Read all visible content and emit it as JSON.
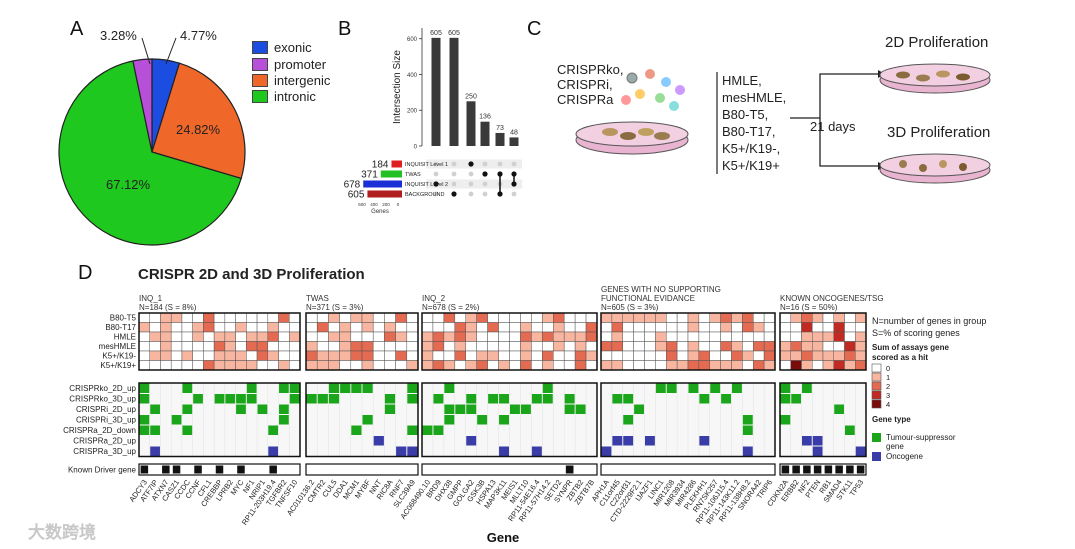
{
  "panels": {
    "a": "A",
    "b": "B",
    "c": "C",
    "d": "D"
  },
  "pie": {
    "slices": [
      {
        "label": "exonic",
        "value": 4.77,
        "display": "4.77%",
        "color": "#1b4de0"
      },
      {
        "label": "intergenic",
        "value": 24.82,
        "display": "24.82%",
        "color": "#f0672a"
      },
      {
        "label": "intronic",
        "value": 67.12,
        "display": "67.12%",
        "color": "#1fc81f"
      },
      {
        "label": "promoter",
        "value": 3.28,
        "display": "3.28%",
        "color": "#b74fd8"
      }
    ],
    "legend": [
      "exonic",
      "promoter",
      "intergenic",
      "intronic"
    ]
  },
  "upset": {
    "ylabel": "Intersection Size",
    "yticks": [
      "0",
      "200",
      "400",
      "600"
    ],
    "bars": [
      605,
      605,
      250,
      136,
      73,
      48
    ],
    "sets": [
      {
        "name": "INQUISIT Level 1",
        "size": 184,
        "color": "#e02020"
      },
      {
        "name": "TWAS",
        "size": 371,
        "color": "#22c022"
      },
      {
        "name": "INQUISIT Level 2",
        "size": 678,
        "color": "#1a2fd6"
      },
      {
        "name": "BACKGROUND",
        "size": 605,
        "color": "#b01e1e"
      }
    ],
    "set_axis_ticks": [
      "600",
      "400",
      "200",
      "0"
    ],
    "set_axis_label": "Genes"
  },
  "workflow": {
    "crispr_text": [
      "CRISPRko,",
      "CRISPRi,",
      "CRISPRa"
    ],
    "cell_lines": [
      "HMLE,",
      "mesHMLE,",
      "B80-T5,",
      "B80-T17,",
      "K5+/K19-,",
      "K5+/K19+"
    ],
    "duration": "21 days",
    "out_2d": "2D Proliferation",
    "out_3d": "3D Proliferation"
  },
  "heatmap": {
    "title": "CRISPR 2D and 3D Proliferation",
    "groups": [
      {
        "name": "INQ_1",
        "info": "N=184 (S = 8%)"
      },
      {
        "name": "TWAS",
        "info": "N=371 (S = 3%)"
      },
      {
        "name": "INQ_2",
        "info": "N=678 (S = 2%)"
      },
      {
        "name": "GENES WITH NO SUPPORTING",
        "name2": "FUNCTIONAL EVIDANCE",
        "info": "N=605 (S = 3%)"
      },
      {
        "name": "KNOWN ONCOGENES/TSG",
        "info": "N=16 (S = 50%)"
      }
    ],
    "cell_rows": [
      "B80-T5",
      "B80-T17",
      "HMLE",
      "mesHMLE",
      "K5+/K19-",
      "K5+/K19+"
    ],
    "assay_rows": [
      "CRISPRko_2D_up",
      "CRISPRko_3D_up",
      "CRISPRi_2D_up",
      "CRISPRi_3D_up",
      "CRISPRa_2D_down",
      "CRISPRa_2D_up",
      "CRISPRa_3D_up"
    ],
    "driver_label": "Known Driver gene",
    "xlabel": "Gene",
    "gene_labels": [
      [
        "ADCY3",
        "ATF7IP",
        "ATXN7",
        "CASZ1",
        "CCDC",
        "CCNF",
        "CFL1",
        "CREBBP",
        "LPRB2",
        "MYC",
        "NF1",
        "NRIP1",
        "RP11-203H19.4",
        "TGFBR2",
        "TNFSF10"
      ],
      [
        "AC010136.2",
        "CMTR2",
        "CUL5",
        "DDA1",
        "MCM1",
        "MYBF",
        "NNT",
        "RIC8A",
        "RNF7",
        "SLC39A9"
      ],
      [
        "AC068490.10",
        "BRD9",
        "DHX38",
        "GMPP",
        "GOLGA2",
        "GSK3B",
        "HSPA13",
        "MAP3K11",
        "MEIS1",
        "MLLT10",
        "RP11-54E16.4",
        "RP11-57H14.2",
        "SETD2",
        "SYNPR",
        "ZBTB2",
        "ZBTB7B"
      ],
      [
        "APH1A",
        "C11orf45",
        "C22orf31",
        "CTD-2229F2.1",
        "IJAZF1",
        "LINC1",
        "MIR1208",
        "MIR3934",
        "MIR4286",
        "PLEKHH1",
        "RN7SK257",
        "RP11-106J15.4",
        "RP11-143K11.2",
        "RP11-138H8.2",
        "SNORA42",
        "TRIP6"
      ],
      [
        "CDKN2A",
        "ERBB2",
        "NF2",
        "PTEN",
        "RB1",
        "SMAD4",
        "STK11",
        "TP53"
      ]
    ],
    "legend_n": "N=number of genes in group",
    "legend_s": "S=% of scoring genes",
    "legend_sum_title": [
      "Sum of assays gene",
      "scored as a hit"
    ],
    "legend_sum_levels": [
      "0",
      "1",
      "2",
      "3",
      "4"
    ],
    "legend_sum_colors": [
      "#ffffff",
      "#f8b6a0",
      "#e46a52",
      "#c02a22",
      "#7a0c0c"
    ],
    "legend_type_title": "Gene type",
    "legend_type_items": [
      {
        "label": "Tumour-suppressor",
        "label2": "gene",
        "color": "#1aa51a"
      },
      {
        "label": "Oncogene",
        "label2": "",
        "color": "#3a3ca8"
      }
    ]
  },
  "watermark": "大数跨境"
}
